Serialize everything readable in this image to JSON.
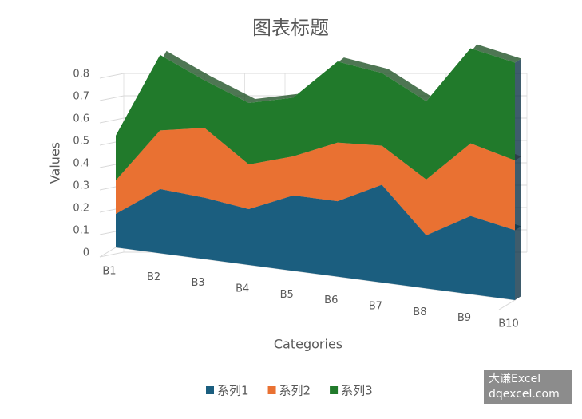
{
  "chart_data": {
    "type": "area3d",
    "title": "图表标题",
    "x_label": "Categories",
    "y_label": "Values",
    "categories": [
      "B1",
      "B2",
      "B3",
      "B4",
      "B5",
      "B6",
      "B7",
      "B8",
      "B9",
      "B10"
    ],
    "series": [
      {
        "name": "系列1",
        "color": "#1b5e7f",
        "values": [
          0.12,
          0.23,
          0.22,
          0.2,
          0.27,
          0.27,
          0.35,
          0.19,
          0.28,
          0.25
        ]
      },
      {
        "name": "系列2",
        "color": "#e97132",
        "values": [
          0.12,
          0.21,
          0.25,
          0.16,
          0.14,
          0.21,
          0.14,
          0.2,
          0.26,
          0.25
        ]
      },
      {
        "name": "系列3",
        "color": "#217a2b",
        "values": [
          0.16,
          0.27,
          0.17,
          0.22,
          0.21,
          0.29,
          0.26,
          0.28,
          0.34,
          0.35
        ]
      }
    ],
    "ylim": [
      0,
      0.8
    ],
    "yticks": [
      0,
      0.1,
      0.2,
      0.3,
      0.4,
      0.5,
      0.6,
      0.7,
      0.8
    ],
    "grid": true,
    "stacked": true,
    "annotations": [
      "大谦Excel",
      "dqexcel.com"
    ]
  }
}
